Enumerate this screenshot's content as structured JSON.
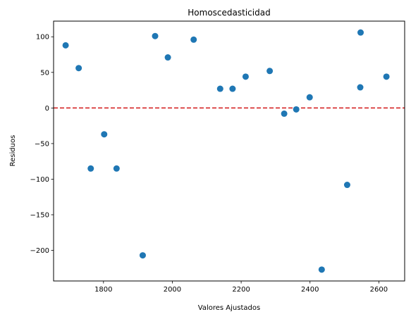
{
  "chart_data": {
    "type": "scatter",
    "title": "Homoscedasticidad",
    "xlabel": "Valores Ajustados",
    "ylabel": "Residuos",
    "xlim": [
      1655,
      2675
    ],
    "ylim": [
      -243,
      122
    ],
    "xticks": [
      1800,
      2000,
      2200,
      2400,
      2600
    ],
    "yticks": [
      100,
      50,
      0,
      -50,
      -100,
      -150,
      -200
    ],
    "xtick_labels": [
      "1800",
      "2000",
      "2200",
      "2400",
      "2600"
    ],
    "ytick_labels": [
      "100",
      "50",
      "0",
      "−50",
      "−100",
      "−150",
      "−200"
    ],
    "grid": false,
    "point_color": "#1f77b4",
    "reference_line": {
      "y": 0,
      "color": "#d62728",
      "style": "dashed"
    },
    "points": [
      {
        "x": 1690,
        "y": 88
      },
      {
        "x": 1728,
        "y": 56
      },
      {
        "x": 1763,
        "y": -85
      },
      {
        "x": 1802,
        "y": -37
      },
      {
        "x": 1838,
        "y": -85
      },
      {
        "x": 1914,
        "y": -207
      },
      {
        "x": 1950,
        "y": 101
      },
      {
        "x": 1987,
        "y": 71
      },
      {
        "x": 2062,
        "y": 96
      },
      {
        "x": 2139,
        "y": 27
      },
      {
        "x": 2175,
        "y": 27
      },
      {
        "x": 2213,
        "y": 44
      },
      {
        "x": 2283,
        "y": 52
      },
      {
        "x": 2325,
        "y": -8
      },
      {
        "x": 2360,
        "y": -2
      },
      {
        "x": 2399,
        "y": 15
      },
      {
        "x": 2434,
        "y": -227
      },
      {
        "x": 2508,
        "y": -108
      },
      {
        "x": 2546,
        "y": 29
      },
      {
        "x": 2547,
        "y": 106
      },
      {
        "x": 2622,
        "y": 44
      }
    ]
  }
}
